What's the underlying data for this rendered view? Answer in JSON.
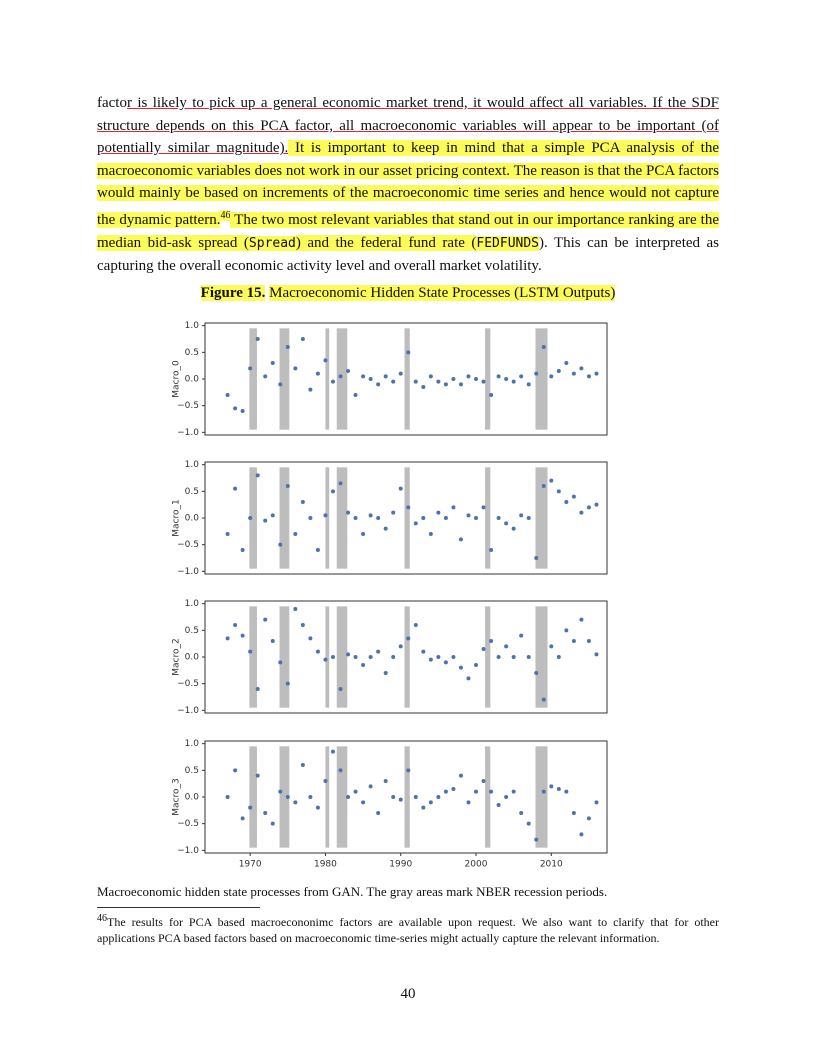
{
  "text": {
    "paragraph": [
      "facto",
      "r is likely to pick up a general economic market trend, it would affect all variables. If the SDF structure depends on this PCA factor, all macroeconomic variables will appear to be important (of potentially similar magnitude).",
      " It is important to keep in mind that a simple PCA analysis of the macroeconomic variables does not work in our asset pricing context. The reason is that the PCA factors would mainly be based on increments of the macroeconomic time series and hence would not capture the dynamic pattern.",
      "46",
      " The two most relevant variables that stand out in our importance ranking are the median bid-ask spread (",
      "Spread",
      ") and the federal fund rate (",
      "FEDFUNDS",
      "). This can be interpreted as capturing the overall economic activity level and overall market volatility."
    ],
    "figure_label": "Figure 15.",
    "figure_title": "Macroeconomic Hidden State Processes (LSTM Outputs)",
    "figure_note": "Macroeconomic hidden state processes from GAN. The gray areas mark NBER recession periods.",
    "footnote_number": "46",
    "footnote": "The results for PCA based macroecononimc factors are available upon request. We also want to clarify that for other applications PCA based factors based on macroeconomic time-series might actually capture the relevant information.",
    "page_number": "40"
  },
  "figure": {
    "recessions": [
      [
        1969.9,
        1970.9
      ],
      [
        1973.9,
        1975.2
      ],
      [
        1980.0,
        1980.5
      ],
      [
        1981.5,
        1982.9
      ],
      [
        1990.5,
        1991.2
      ],
      [
        2001.2,
        2001.9
      ],
      [
        2007.9,
        2009.5
      ]
    ],
    "recession_color": "#bdbdbd"
  },
  "chart_data": [
    {
      "type": "scatter",
      "y_label": "Macro_0",
      "color": "#4c72b0",
      "xlim": [
        1964,
        2017.4
      ],
      "ylim": [
        -1.05,
        1.05
      ],
      "yticks": [
        {
          "value": 1,
          "label": "1.0"
        },
        0.5,
        {
          "value": 0,
          "label": "0.0"
        },
        {
          "value": -0.5,
          "label": "−0.5"
        },
        {
          "value": -1,
          "label": "−1.0"
        }
      ],
      "x": [
        1967,
        1968,
        1969,
        1970,
        1971,
        1972,
        1973,
        1974,
        1975,
        1976,
        1977,
        1978,
        1979,
        1980,
        1981,
        1982,
        1983,
        1984,
        1985,
        1986,
        1987,
        1988,
        1989,
        1990,
        1991,
        1992,
        1993,
        1994,
        1995,
        1996,
        1997,
        1998,
        1999,
        2000,
        2001,
        2002,
        2003,
        2004,
        2005,
        2006,
        2007,
        2008,
        2009,
        2010,
        2011,
        2012,
        2013,
        2014,
        2015,
        2016
      ],
      "values": [
        -0.3,
        -0.55,
        -0.6,
        0.2,
        0.75,
        0.05,
        0.3,
        -0.1,
        0.6,
        0.2,
        0.75,
        -0.2,
        0.1,
        0.35,
        -0.05,
        0.05,
        0.15,
        -0.3,
        0.05,
        0.0,
        -0.1,
        0.05,
        -0.05,
        0.1,
        0.5,
        -0.05,
        -0.15,
        0.05,
        -0.05,
        -0.1,
        0.0,
        -0.1,
        0.05,
        0.0,
        -0.05,
        -0.3,
        0.05,
        0.0,
        -0.05,
        0.05,
        -0.1,
        0.1,
        0.6,
        0.05,
        0.15,
        0.3,
        0.1,
        0.2,
        0.05,
        0.1
      ]
    },
    {
      "type": "scatter",
      "y_label": "Macro_1",
      "color": "#4c72b0",
      "xlim": [
        1964,
        2017.4
      ],
      "ylim": [
        -1.05,
        1.05
      ],
      "yticks": [
        {
          "value": 1,
          "label": "1.0"
        },
        0.5,
        {
          "value": 0,
          "label": "0.0"
        },
        {
          "value": -0.5,
          "label": "−0.5"
        },
        {
          "value": -1,
          "label": "−1.0"
        }
      ],
      "x": [
        1967,
        1968,
        1969,
        1970,
        1971,
        1972,
        1973,
        1974,
        1975,
        1976,
        1977,
        1978,
        1979,
        1980,
        1981,
        1982,
        1983,
        1984,
        1985,
        1986,
        1987,
        1988,
        1989,
        1990,
        1991,
        1992,
        1993,
        1994,
        1995,
        1996,
        1997,
        1998,
        1999,
        2000,
        2001,
        2002,
        2003,
        2004,
        2005,
        2006,
        2007,
        2008,
        2009,
        2010,
        2011,
        2012,
        2013,
        2014,
        2015,
        2016
      ],
      "values": [
        -0.3,
        0.55,
        -0.6,
        0.0,
        0.8,
        -0.05,
        0.05,
        -0.5,
        0.6,
        -0.3,
        0.3,
        0.0,
        -0.6,
        0.05,
        0.5,
        0.65,
        0.1,
        0.0,
        -0.3,
        0.05,
        0.0,
        -0.2,
        0.1,
        0.55,
        0.2,
        -0.1,
        0.0,
        -0.3,
        0.1,
        0.0,
        0.2,
        -0.4,
        0.05,
        0.0,
        0.2,
        -0.6,
        0.0,
        -0.1,
        -0.2,
        0.05,
        0.0,
        -0.75,
        0.6,
        0.7,
        0.5,
        0.3,
        0.4,
        0.1,
        0.2,
        0.25
      ]
    },
    {
      "type": "scatter",
      "y_label": "Macro_2",
      "color": "#4c72b0",
      "xlim": [
        1964,
        2017.4
      ],
      "ylim": [
        -1.05,
        1.05
      ],
      "yticks": [
        {
          "value": 1,
          "label": "1.0"
        },
        0.5,
        {
          "value": 0,
          "label": "0.0"
        },
        {
          "value": -0.5,
          "label": "−0.5"
        },
        {
          "value": -1,
          "label": "−1.0"
        }
      ],
      "x": [
        1967,
        1968,
        1969,
        1970,
        1971,
        1972,
        1973,
        1974,
        1975,
        1976,
        1977,
        1978,
        1979,
        1980,
        1981,
        1982,
        1983,
        1984,
        1985,
        1986,
        1987,
        1988,
        1989,
        1990,
        1991,
        1992,
        1993,
        1994,
        1995,
        1996,
        1997,
        1998,
        1999,
        2000,
        2001,
        2002,
        2003,
        2004,
        2005,
        2006,
        2007,
        2008,
        2009,
        2010,
        2011,
        2012,
        2013,
        2014,
        2015,
        2016
      ],
      "values": [
        0.35,
        0.6,
        0.4,
        0.1,
        -0.6,
        0.7,
        0.3,
        -0.1,
        -0.5,
        0.9,
        0.6,
        0.35,
        0.1,
        -0.05,
        0.0,
        -0.6,
        0.05,
        0.0,
        -0.15,
        0.0,
        0.1,
        -0.3,
        0.0,
        0.2,
        0.35,
        0.6,
        0.1,
        -0.05,
        0.0,
        -0.1,
        0.0,
        -0.2,
        -0.4,
        -0.15,
        0.15,
        0.3,
        0.0,
        0.2,
        0.0,
        0.4,
        0.0,
        -0.3,
        -0.8,
        0.2,
        0.0,
        0.5,
        0.3,
        0.7,
        0.3,
        0.05
      ]
    },
    {
      "type": "scatter",
      "y_label": "Macro_3",
      "color": "#4c72b0",
      "xlim": [
        1964,
        2017.4
      ],
      "ylim": [
        -1.05,
        1.05
      ],
      "yticks": [
        {
          "value": 1,
          "label": "1.0"
        },
        0.5,
        {
          "value": 0,
          "label": "0.0"
        },
        {
          "value": -0.5,
          "label": "−0.5"
        },
        {
          "value": -1,
          "label": "−1.0"
        }
      ],
      "xticks": [
        1970,
        1980,
        1990,
        2000,
        2010
      ],
      "x": [
        1967,
        1968,
        1969,
        1970,
        1971,
        1972,
        1973,
        1974,
        1975,
        1976,
        1977,
        1978,
        1979,
        1980,
        1981,
        1982,
        1983,
        1984,
        1985,
        1986,
        1987,
        1988,
        1989,
        1990,
        1991,
        1992,
        1993,
        1994,
        1995,
        1996,
        1997,
        1998,
        1999,
        2000,
        2001,
        2002,
        2003,
        2004,
        2005,
        2006,
        2007,
        2008,
        2009,
        2010,
        2011,
        2012,
        2013,
        2014,
        2015,
        2016
      ],
      "values": [
        0.0,
        0.5,
        -0.4,
        -0.2,
        0.4,
        -0.3,
        -0.5,
        0.1,
        0.0,
        -0.1,
        0.6,
        0.0,
        -0.2,
        0.3,
        0.85,
        0.5,
        0.0,
        0.1,
        -0.1,
        0.2,
        -0.3,
        0.3,
        0.0,
        -0.05,
        0.5,
        0.0,
        -0.2,
        -0.1,
        0.0,
        0.1,
        0.15,
        0.4,
        -0.1,
        0.1,
        0.3,
        0.1,
        -0.15,
        0.0,
        0.1,
        -0.3,
        -0.5,
        -0.8,
        0.1,
        0.2,
        0.15,
        0.1,
        -0.3,
        -0.7,
        -0.4,
        -0.1
      ]
    }
  ]
}
